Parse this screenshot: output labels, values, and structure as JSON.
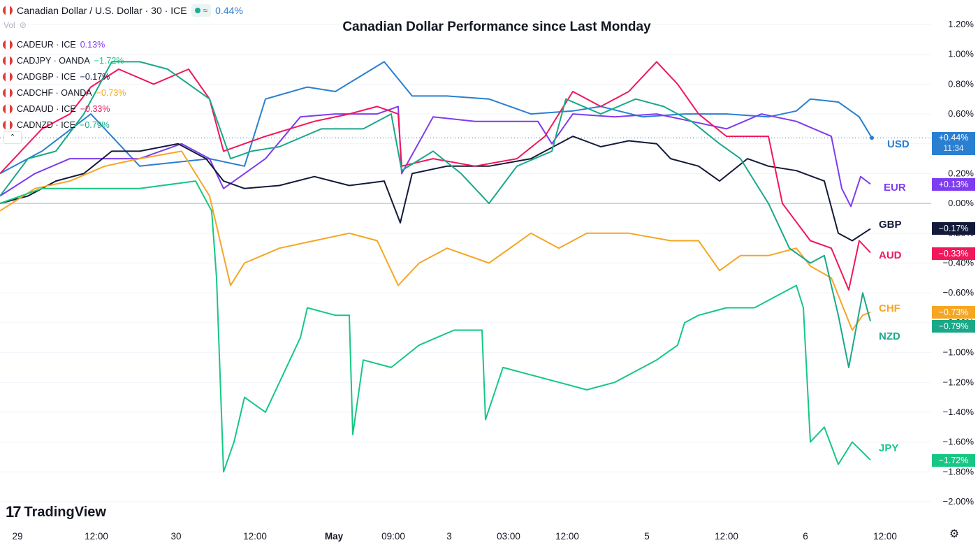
{
  "header": {
    "symbol": "Canadian Dollar / U.S. Dollar · 30 · ICE",
    "change": "0.44%",
    "vol_label": "Vol"
  },
  "legend": [
    {
      "name": "CADEUR · ICE",
      "change": "0.13%",
      "color": "#7e3cf0"
    },
    {
      "name": "CADJPY · OANDA",
      "change": "−1.72%",
      "color": "#16c784"
    },
    {
      "name": "CADGBP · ICE",
      "change": "−0.17%",
      "color": "#131a39"
    },
    {
      "name": "CADCHF · OANDA",
      "change": "−0.73%",
      "color": "#f5a623"
    },
    {
      "name": "CADAUD · ICE",
      "change": "−0.33%",
      "color": "#f0175a"
    },
    {
      "name": "CADNZD · ICE",
      "change": "−0.79%",
      "color": "#1aa889"
    }
  ],
  "branding": "TradingView",
  "chart_data": {
    "type": "line",
    "title": "Canadian Dollar Performance since Last Monday",
    "y_unit": "%",
    "ylim": [
      -2.0,
      1.2
    ],
    "y_ticks": [
      "1.20%",
      "1.00%",
      "0.80%",
      "0.60%",
      "0.40%",
      "0.20%",
      "0.00%",
      "−0.20%",
      "−0.40%",
      "−0.60%",
      "−0.80%",
      "−1.00%",
      "−1.20%",
      "−1.40%",
      "−1.60%",
      "−1.80%",
      "−2.00%"
    ],
    "x_ticks": [
      "29",
      "12:00",
      "30",
      "12:00",
      "May",
      "09:00",
      "3",
      "03:00",
      "12:00",
      "5",
      "12:00",
      "6",
      "12:00"
    ],
    "zero_line": true,
    "last_time": "11:34",
    "series": [
      {
        "name": "USD",
        "label": "USD",
        "last_label": "+0.44%",
        "color": "#2a7fd1",
        "values": [
          [
            0,
            0.2
          ],
          [
            60,
            0.35
          ],
          [
            130,
            0.6
          ],
          [
            200,
            0.25
          ],
          [
            300,
            0.3
          ],
          [
            350,
            0.25
          ],
          [
            380,
            0.7
          ],
          [
            440,
            0.78
          ],
          [
            480,
            0.75
          ],
          [
            550,
            0.95
          ],
          [
            590,
            0.72
          ],
          [
            640,
            0.72
          ],
          [
            700,
            0.7
          ],
          [
            760,
            0.6
          ],
          [
            820,
            0.62
          ],
          [
            860,
            0.65
          ],
          [
            920,
            0.58
          ],
          [
            980,
            0.6
          ],
          [
            1040,
            0.6
          ],
          [
            1100,
            0.58
          ],
          [
            1140,
            0.62
          ],
          [
            1160,
            0.7
          ],
          [
            1200,
            0.68
          ],
          [
            1230,
            0.58
          ],
          [
            1248,
            0.44
          ]
        ]
      },
      {
        "name": "EUR",
        "label": "EUR",
        "last_label": "+0.13%",
        "color": "#7e3cf0",
        "values": [
          [
            0,
            0.05
          ],
          [
            50,
            0.2
          ],
          [
            100,
            0.3
          ],
          [
            140,
            0.3
          ],
          [
            200,
            0.3
          ],
          [
            260,
            0.4
          ],
          [
            300,
            0.3
          ],
          [
            320,
            0.1
          ],
          [
            380,
            0.3
          ],
          [
            430,
            0.58
          ],
          [
            480,
            0.6
          ],
          [
            540,
            0.6
          ],
          [
            570,
            0.65
          ],
          [
            575,
            0.2
          ],
          [
            620,
            0.58
          ],
          [
            680,
            0.55
          ],
          [
            740,
            0.55
          ],
          [
            770,
            0.55
          ],
          [
            790,
            0.4
          ],
          [
            820,
            0.6
          ],
          [
            880,
            0.58
          ],
          [
            940,
            0.6
          ],
          [
            990,
            0.55
          ],
          [
            1040,
            0.5
          ],
          [
            1090,
            0.6
          ],
          [
            1140,
            0.55
          ],
          [
            1190,
            0.45
          ],
          [
            1205,
            0.1
          ],
          [
            1218,
            -0.02
          ],
          [
            1232,
            0.18
          ],
          [
            1246,
            0.13
          ]
        ]
      },
      {
        "name": "GBP",
        "label": "GBP",
        "last_label": "−0.17%",
        "color": "#131a39",
        "values": [
          [
            0,
            0.0
          ],
          [
            40,
            0.05
          ],
          [
            80,
            0.15
          ],
          [
            120,
            0.2
          ],
          [
            160,
            0.35
          ],
          [
            200,
            0.35
          ],
          [
            255,
            0.4
          ],
          [
            295,
            0.3
          ],
          [
            320,
            0.15
          ],
          [
            350,
            0.1
          ],
          [
            400,
            0.12
          ],
          [
            450,
            0.18
          ],
          [
            500,
            0.12
          ],
          [
            550,
            0.15
          ],
          [
            573,
            -0.13
          ],
          [
            590,
            0.2
          ],
          [
            640,
            0.25
          ],
          [
            700,
            0.25
          ],
          [
            760,
            0.3
          ],
          [
            820,
            0.45
          ],
          [
            860,
            0.38
          ],
          [
            900,
            0.42
          ],
          [
            940,
            0.4
          ],
          [
            960,
            0.3
          ],
          [
            1000,
            0.25
          ],
          [
            1030,
            0.15
          ],
          [
            1070,
            0.3
          ],
          [
            1100,
            0.25
          ],
          [
            1140,
            0.22
          ],
          [
            1180,
            0.15
          ],
          [
            1200,
            -0.2
          ],
          [
            1220,
            -0.25
          ],
          [
            1246,
            -0.17
          ]
        ]
      },
      {
        "name": "AUD",
        "label": "AUD",
        "last_label": "−0.33%",
        "color": "#f0175a",
        "values": [
          [
            0,
            0.2
          ],
          [
            60,
            0.5
          ],
          [
            100,
            0.6
          ],
          [
            130,
            0.78
          ],
          [
            170,
            0.9
          ],
          [
            220,
            0.8
          ],
          [
            270,
            0.9
          ],
          [
            300,
            0.7
          ],
          [
            320,
            0.35
          ],
          [
            350,
            0.4
          ],
          [
            380,
            0.45
          ],
          [
            450,
            0.55
          ],
          [
            500,
            0.6
          ],
          [
            540,
            0.65
          ],
          [
            570,
            0.6
          ],
          [
            575,
            0.25
          ],
          [
            620,
            0.3
          ],
          [
            680,
            0.25
          ],
          [
            740,
            0.3
          ],
          [
            780,
            0.45
          ],
          [
            820,
            0.75
          ],
          [
            860,
            0.65
          ],
          [
            900,
            0.75
          ],
          [
            940,
            0.95
          ],
          [
            970,
            0.8
          ],
          [
            1000,
            0.6
          ],
          [
            1040,
            0.45
          ],
          [
            1070,
            0.45
          ],
          [
            1100,
            0.45
          ],
          [
            1120,
            0.0
          ],
          [
            1160,
            -0.25
          ],
          [
            1190,
            -0.3
          ],
          [
            1215,
            -0.58
          ],
          [
            1230,
            -0.25
          ],
          [
            1246,
            -0.33
          ]
        ]
      },
      {
        "name": "CHF",
        "label": "CHF",
        "last_label": "−0.73%",
        "color": "#f5a623",
        "values": [
          [
            0,
            -0.05
          ],
          [
            50,
            0.1
          ],
          [
            100,
            0.15
          ],
          [
            150,
            0.25
          ],
          [
            200,
            0.3
          ],
          [
            260,
            0.35
          ],
          [
            300,
            0.05
          ],
          [
            330,
            -0.55
          ],
          [
            350,
            -0.4
          ],
          [
            400,
            -0.3
          ],
          [
            450,
            -0.25
          ],
          [
            500,
            -0.2
          ],
          [
            540,
            -0.25
          ],
          [
            570,
            -0.55
          ],
          [
            600,
            -0.4
          ],
          [
            640,
            -0.3
          ],
          [
            700,
            -0.4
          ],
          [
            760,
            -0.2
          ],
          [
            800,
            -0.3
          ],
          [
            840,
            -0.2
          ],
          [
            900,
            -0.2
          ],
          [
            960,
            -0.25
          ],
          [
            1000,
            -0.25
          ],
          [
            1030,
            -0.45
          ],
          [
            1060,
            -0.35
          ],
          [
            1100,
            -0.35
          ],
          [
            1140,
            -0.3
          ],
          [
            1160,
            -0.42
          ],
          [
            1190,
            -0.5
          ],
          [
            1220,
            -0.85
          ],
          [
            1235,
            -0.75
          ],
          [
            1246,
            -0.73
          ]
        ]
      },
      {
        "name": "NZD",
        "label": "NZD",
        "last_label": "−0.79%",
        "color": "#1aa889",
        "values": [
          [
            0,
            0.05
          ],
          [
            40,
            0.3
          ],
          [
            80,
            0.35
          ],
          [
            120,
            0.6
          ],
          [
            160,
            0.95
          ],
          [
            200,
            0.95
          ],
          [
            240,
            0.9
          ],
          [
            300,
            0.7
          ],
          [
            330,
            0.3
          ],
          [
            360,
            0.35
          ],
          [
            400,
            0.38
          ],
          [
            460,
            0.5
          ],
          [
            520,
            0.5
          ],
          [
            560,
            0.6
          ],
          [
            575,
            0.22
          ],
          [
            620,
            0.35
          ],
          [
            660,
            0.2
          ],
          [
            700,
            0.0
          ],
          [
            740,
            0.25
          ],
          [
            790,
            0.35
          ],
          [
            810,
            0.7
          ],
          [
            860,
            0.6
          ],
          [
            910,
            0.7
          ],
          [
            950,
            0.65
          ],
          [
            990,
            0.55
          ],
          [
            1030,
            0.4
          ],
          [
            1060,
            0.3
          ],
          [
            1100,
            0.0
          ],
          [
            1130,
            -0.3
          ],
          [
            1160,
            -0.4
          ],
          [
            1180,
            -0.35
          ],
          [
            1200,
            -0.75
          ],
          [
            1215,
            -1.1
          ],
          [
            1235,
            -0.6
          ],
          [
            1246,
            -0.79
          ]
        ]
      },
      {
        "name": "JPY",
        "label": "JPY",
        "last_label": "−1.72%",
        "color": "#16c784",
        "values": [
          [
            0,
            0.0
          ],
          [
            60,
            0.1
          ],
          [
            130,
            0.1
          ],
          [
            200,
            0.1
          ],
          [
            280,
            0.15
          ],
          [
            303,
            -0.05
          ],
          [
            310,
            -0.5
          ],
          [
            320,
            -1.8
          ],
          [
            335,
            -1.6
          ],
          [
            350,
            -1.3
          ],
          [
            380,
            -1.4
          ],
          [
            430,
            -0.9
          ],
          [
            440,
            -0.7
          ],
          [
            480,
            -0.75
          ],
          [
            500,
            -0.75
          ],
          [
            505,
            -1.55
          ],
          [
            520,
            -1.05
          ],
          [
            560,
            -1.1
          ],
          [
            600,
            -0.95
          ],
          [
            650,
            -0.85
          ],
          [
            690,
            -0.85
          ],
          [
            695,
            -1.45
          ],
          [
            720,
            -1.1
          ],
          [
            800,
            -1.2
          ],
          [
            840,
            -1.25
          ],
          [
            880,
            -1.2
          ],
          [
            940,
            -1.05
          ],
          [
            970,
            -0.95
          ],
          [
            980,
            -0.8
          ],
          [
            1000,
            -0.75
          ],
          [
            1040,
            -0.7
          ],
          [
            1080,
            -0.7
          ],
          [
            1140,
            -0.55
          ],
          [
            1150,
            -0.7
          ],
          [
            1160,
            -1.6
          ],
          [
            1180,
            -1.5
          ],
          [
            1200,
            -1.75
          ],
          [
            1220,
            -1.6
          ],
          [
            1246,
            -1.72
          ]
        ]
      }
    ]
  }
}
